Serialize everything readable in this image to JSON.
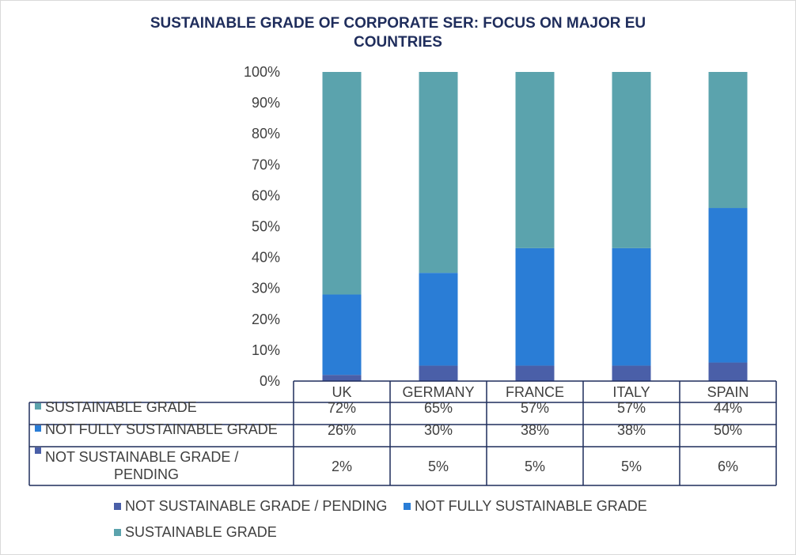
{
  "chart_data": {
    "type": "bar",
    "stacked": true,
    "title_line1": "SUSTAINABLE GRADE OF CORPORATE SER: FOCUS ON MAJOR EU",
    "title_line2": "COUNTRIES",
    "categories": [
      "UK",
      "GERMANY",
      "FRANCE",
      "ITALY",
      "SPAIN"
    ],
    "y_ticks": [
      "0%",
      "10%",
      "20%",
      "30%",
      "40%",
      "50%",
      "60%",
      "70%",
      "80%",
      "90%",
      "100%"
    ],
    "ylim": [
      0,
      100
    ],
    "series": [
      {
        "name": "NOT SUSTAINABLE GRADE / PENDING",
        "table_label_1": "NOT SUSTAINABLE GRADE /",
        "table_label_2": "PENDING",
        "color": "#4a5fa8",
        "values": [
          2,
          5,
          5,
          5,
          6
        ],
        "labels": [
          "2%",
          "5%",
          "5%",
          "5%",
          "6%"
        ]
      },
      {
        "name": "NOT FULLY SUSTAINABLE GRADE",
        "color": "#2a7dd6",
        "values": [
          26,
          30,
          38,
          38,
          50
        ],
        "labels": [
          "26%",
          "30%",
          "38%",
          "38%",
          "50%"
        ]
      },
      {
        "name": "SUSTAINABLE GRADE",
        "color": "#5ba3ad",
        "values": [
          72,
          65,
          57,
          57,
          44
        ],
        "labels": [
          "72%",
          "65%",
          "57%",
          "57%",
          "44%"
        ]
      }
    ],
    "legend_position": "bottom",
    "grid": false
  }
}
